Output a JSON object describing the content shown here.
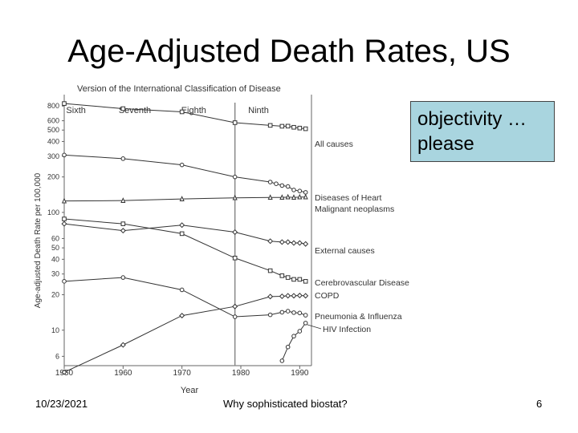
{
  "slide": {
    "title": "Age-Adjusted Death Rates, US",
    "callout": "objectivity … please",
    "footer_date": "10/23/2021",
    "footer_center": "Why sophisticated biostat?",
    "page_number": "6"
  },
  "chart_data": {
    "type": "line",
    "title": "Version of the International Classification of Disease",
    "xlabel": "Year",
    "ylabel": "Age-adjusted Death Rate per 100,000",
    "xlim": [
      1950,
      1992
    ],
    "ylim": [
      5,
      1000
    ],
    "y_scale": "log",
    "x_ticks": [
      1950,
      1960,
      1970,
      1980,
      1990
    ],
    "y_ticks": [
      {
        "value": 800,
        "label": "800"
      },
      {
        "value": 600,
        "label": "600"
      },
      {
        "value": 500,
        "label": "500"
      },
      {
        "value": 400,
        "label": "400"
      },
      {
        "value": 300,
        "label": "300"
      },
      {
        "value": 200,
        "label": "200"
      },
      {
        "value": 100,
        "label": "100"
      },
      {
        "value": 60,
        "label": "60"
      },
      {
        "value": 50,
        "label": "50"
      },
      {
        "value": 40,
        "label": "40"
      },
      {
        "value": 30,
        "label": "30"
      },
      {
        "value": 20,
        "label": "20"
      },
      {
        "value": 10,
        "label": "10"
      },
      {
        "value": 6,
        "label": "6"
      }
    ],
    "icd_versions": [
      {
        "label": "Sixth",
        "year": 1952
      },
      {
        "label": "Seventh",
        "year": 1962
      },
      {
        "label": "Eighth",
        "year": 1972
      },
      {
        "label": "Ninth",
        "year": 1983
      }
    ],
    "icd_divider_year": 1979,
    "series": [
      {
        "name": "All causes",
        "marker": "square",
        "x": [
          1950,
          1960,
          1970,
          1979,
          1985,
          1987,
          1988,
          1989,
          1990,
          1991
        ],
        "y": [
          840,
          760,
          714,
          578,
          548,
          539,
          540,
          528,
          520,
          513
        ]
      },
      {
        "name": "Diseases of Heart",
        "marker": "circle",
        "x": [
          1950,
          1960,
          1970,
          1979,
          1985,
          1986,
          1987,
          1988,
          1989,
          1990,
          1991
        ],
        "y": [
          307,
          286,
          253,
          200,
          181,
          175,
          169,
          166,
          155,
          152,
          148
        ]
      },
      {
        "name": "Malignant neoplasms",
        "marker": "triangle",
        "x": [
          1950,
          1960,
          1970,
          1979,
          1985,
          1987,
          1988,
          1989,
          1990,
          1991
        ],
        "y": [
          125,
          126,
          130,
          133,
          134,
          134,
          135,
          134,
          135,
          135
        ]
      },
      {
        "name": "External causes",
        "marker": "diamond",
        "x": [
          1950,
          1960,
          1970,
          1979,
          1985,
          1987,
          1988,
          1989,
          1990,
          1991
        ],
        "y": [
          80,
          70,
          78,
          68,
          57,
          56,
          56,
          55,
          55,
          54
        ]
      },
      {
        "name": "Cerebrovascular Disease",
        "marker": "square",
        "x": [
          1950,
          1960,
          1970,
          1979,
          1985,
          1987,
          1988,
          1989,
          1990,
          1991
        ],
        "y": [
          88,
          80,
          66,
          41,
          32,
          29,
          28,
          27,
          27,
          26
        ]
      },
      {
        "name": "COPD",
        "marker": "diamond",
        "x": [
          1950,
          1960,
          1970,
          1979,
          1985,
          1987,
          1988,
          1989,
          1990,
          1991
        ],
        "y": [
          4.4,
          7.5,
          13.3,
          15.9,
          19.3,
          19.4,
          19.6,
          19.6,
          19.7,
          19.6
        ]
      },
      {
        "name": "Pneumonia & Influenza",
        "marker": "circle",
        "x": [
          1950,
          1960,
          1970,
          1979,
          1985,
          1987,
          1988,
          1989,
          1990,
          1991
        ],
        "y": [
          26,
          28,
          22,
          13,
          13.5,
          14.2,
          14.5,
          14.1,
          14.0,
          13.4
        ]
      },
      {
        "name": "HIV Infection",
        "marker": "circle",
        "x": [
          1987,
          1988,
          1989,
          1990,
          1991
        ],
        "y": [
          5.5,
          7.2,
          8.9,
          9.8,
          11.5
        ]
      }
    ]
  }
}
